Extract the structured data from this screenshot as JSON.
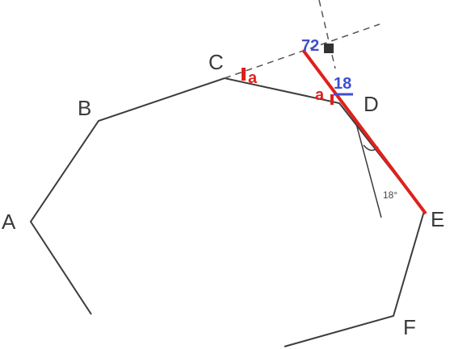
{
  "diagram": {
    "points": [
      {
        "id": "A",
        "label": "A"
      },
      {
        "id": "B",
        "label": "B"
      },
      {
        "id": "C",
        "label": "C"
      },
      {
        "id": "D",
        "label": "D"
      },
      {
        "id": "E",
        "label": "E"
      },
      {
        "id": "F",
        "label": "F"
      }
    ],
    "angle_text": "18°",
    "marks": {
      "a_near_c": "a",
      "a_near_d": "a",
      "top_value": "72",
      "d_value": "18"
    },
    "colors": {
      "outline": "#3c3c3c",
      "dashed": "#555555",
      "red": "#e0201b",
      "blue": "#3e4fd0"
    }
  }
}
